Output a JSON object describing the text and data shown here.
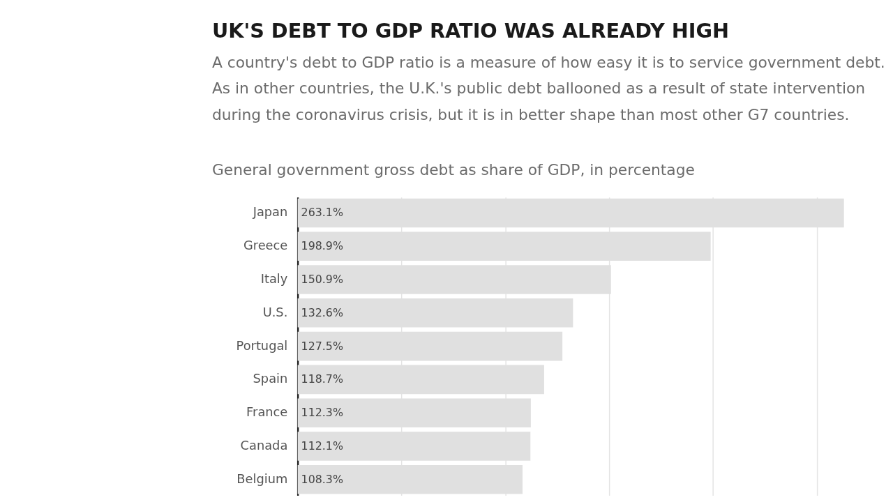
{
  "chart_data": {
    "type": "bar",
    "orientation": "horizontal",
    "title": "UK'S DEBT TO GDP RATIO WAS ALREADY HIGH",
    "subtitle": "A country's debt to GDP ratio is a measure of how easy it is to service government debt. As in other countries, the U.K.'s public debt ballooned as a result of state intervention during the coronavirus crisis, but it is in better shape than most other G7 countries.",
    "annotations": [
      "General government gross debt as share of GDP, in percentage"
    ],
    "categories": [
      "Japan",
      "Greece",
      "Italy",
      "U.S.",
      "Portugal",
      "Spain",
      "France",
      "Canada",
      "Belgium"
    ],
    "values": [
      263.1,
      198.9,
      150.9,
      132.6,
      127.5,
      118.7,
      112.3,
      112.1,
      108.3
    ],
    "value_labels": [
      "263.1%",
      "198.9%",
      "150.9%",
      "132.6%",
      "127.5%",
      "118.7%",
      "112.3%",
      "112.1%",
      "108.3%"
    ],
    "color": "#e0e0e0",
    "xticks": [
      {
        "value": 50,
        "label": null
      },
      {
        "value": 100,
        "label": null
      },
      {
        "value": 150,
        "label": null
      },
      {
        "value": 200,
        "label": null
      },
      {
        "value": 250,
        "label": null
      }
    ],
    "grid": "x",
    "tick_labels": "y"
  }
}
